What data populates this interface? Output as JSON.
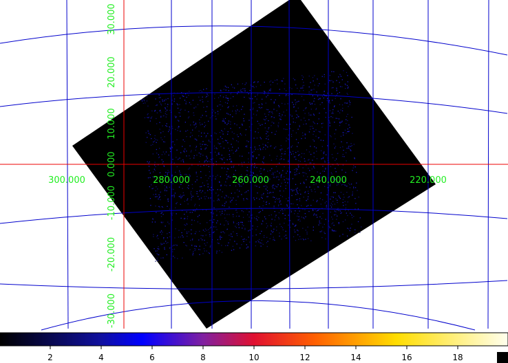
{
  "image": {
    "x_labels": [
      "300.000",
      "280.000",
      "260.000",
      "240.000",
      "220.000"
    ],
    "y_labels": [
      "30.000",
      "20.000",
      "10.000",
      "0.000",
      "-10.000",
      "-20.000",
      "-30.000"
    ]
  },
  "colorbar": {
    "labels": [
      "2",
      "4",
      "6",
      "8",
      "10",
      "12",
      "14",
      "16",
      "18"
    ]
  }
}
